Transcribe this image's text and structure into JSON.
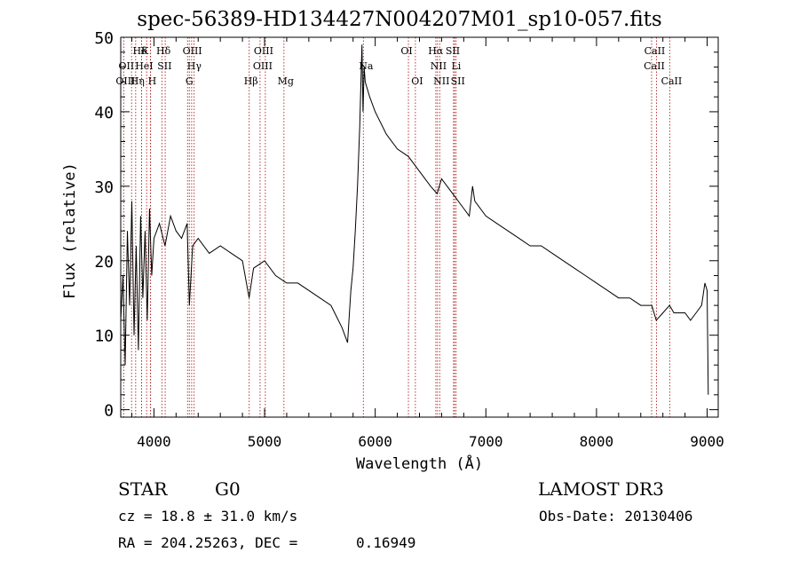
{
  "title": "spec-56389-HD134427N004207M01_sp10-057.fits",
  "info": {
    "object_class": "STAR",
    "subclass": "G0",
    "survey": "LAMOST DR3",
    "redshift": "cz = 18.8 ± 31.0 km/s",
    "obs_date": "Obs-Date: 20130406",
    "radec": "RA = 204.25263, DEC =",
    "dec_value": "0.16949"
  },
  "colors": {
    "spectrum": "#000000",
    "lines": "#b22222",
    "axes": "#000000"
  },
  "chart_data": {
    "type": "line",
    "title": "spec-56389-HD134427N004207M01_sp10-057.fits",
    "xlabel": "Wavelength (Å)",
    "ylabel": "Flux (relative)",
    "xlim": [
      3700,
      9100
    ],
    "ylim": [
      -1,
      50
    ],
    "x_ticks": [
      4000,
      5000,
      6000,
      7000,
      8000,
      9000
    ],
    "y_ticks": [
      0,
      10,
      20,
      30,
      40,
      50
    ],
    "series": [
      {
        "name": "spectrum",
        "x": [
          3700,
          3720,
          3740,
          3760,
          3780,
          3800,
          3820,
          3840,
          3860,
          3880,
          3900,
          3920,
          3940,
          3960,
          3980,
          4000,
          4050,
          4100,
          4150,
          4200,
          4250,
          4300,
          4320,
          4350,
          4400,
          4500,
          4600,
          4700,
          4800,
          4860,
          4900,
          5000,
          5100,
          5200,
          5300,
          5400,
          5500,
          5600,
          5700,
          5750,
          5780,
          5800,
          5820,
          5840,
          5860,
          5880,
          5890,
          5900,
          5910,
          5950,
          6000,
          6100,
          6200,
          6300,
          6400,
          6500,
          6560,
          6600,
          6700,
          6800,
          6850,
          6880,
          6900,
          7000,
          7100,
          7200,
          7300,
          7400,
          7500,
          7600,
          7700,
          7800,
          7900,
          8000,
          8100,
          8200,
          8300,
          8400,
          8500,
          8540,
          8600,
          8660,
          8700,
          8800,
          8850,
          8900,
          8950,
          8980,
          9000,
          9010
        ],
        "y": [
          12,
          18,
          6,
          24,
          14,
          28,
          10,
          22,
          8,
          26,
          15,
          24,
          12,
          27,
          18,
          23,
          25,
          22,
          26,
          24,
          23,
          25,
          14,
          22,
          23,
          21,
          22,
          21,
          20,
          15,
          19,
          20,
          18,
          17,
          17,
          16,
          15,
          14,
          11,
          9,
          16,
          19,
          24,
          30,
          38,
          49,
          40,
          46,
          44,
          42,
          40,
          37,
          35,
          34,
          32,
          30,
          29,
          31,
          29,
          27,
          26,
          30,
          28,
          26,
          25,
          24,
          23,
          22,
          22,
          21,
          20,
          19,
          18,
          17,
          16,
          15,
          15,
          14,
          14,
          12,
          13,
          14,
          13,
          13,
          12,
          13,
          14,
          17,
          16,
          2
        ]
      }
    ],
    "lines_top": [
      {
        "label": "Hδ",
        "wavelength": 3889
      },
      {
        "label": "K",
        "wavelength": 3934
      },
      {
        "label": "Hδ",
        "wavelength": 4102
      },
      {
        "label": "OIII",
        "wavelength": 4363
      },
      {
        "label": "OIII",
        "wavelength": 5007
      },
      {
        "label": "OI",
        "wavelength": 6300
      },
      {
        "label": "Hα",
        "wavelength": 6563
      },
      {
        "label": "SII",
        "wavelength": 6717
      },
      {
        "label": "CaII",
        "wavelength": 8542
      }
    ],
    "lines_mid": [
      {
        "label": "OII",
        "wavelength": 3727
      },
      {
        "label": "HeI",
        "wavelength": 3888
      },
      {
        "label": "SII",
        "wavelength": 4072
      },
      {
        "label": "Hγ",
        "wavelength": 4341
      },
      {
        "label": "OIII",
        "wavelength": 4959
      },
      {
        "label": "Na",
        "wavelength": 5893
      },
      {
        "label": "NII",
        "wavelength": 6548
      },
      {
        "label": "Li",
        "wavelength": 6708
      },
      {
        "label": "CaII",
        "wavelength": 8498
      }
    ],
    "lines_bottom": [
      {
        "label": "OIII",
        "wavelength": 3727
      },
      {
        "label": "Hη",
        "wavelength": 3835
      },
      {
        "label": "H",
        "wavelength": 3968
      },
      {
        "label": "G",
        "wavelength": 4304
      },
      {
        "label": "Hβ",
        "wavelength": 4861
      },
      {
        "label": "Mg",
        "wavelength": 5175
      },
      {
        "label": "OI",
        "wavelength": 6363
      },
      {
        "label": "NII",
        "wavelength": 6583
      },
      {
        "label": "SII",
        "wavelength": 6731
      },
      {
        "label": "CaII",
        "wavelength": 8662
      }
    ],
    "extra_line_markers": [
      3798,
      3970,
      4320,
      6548,
      6583,
      6717,
      6731,
      8498,
      8542
    ]
  }
}
